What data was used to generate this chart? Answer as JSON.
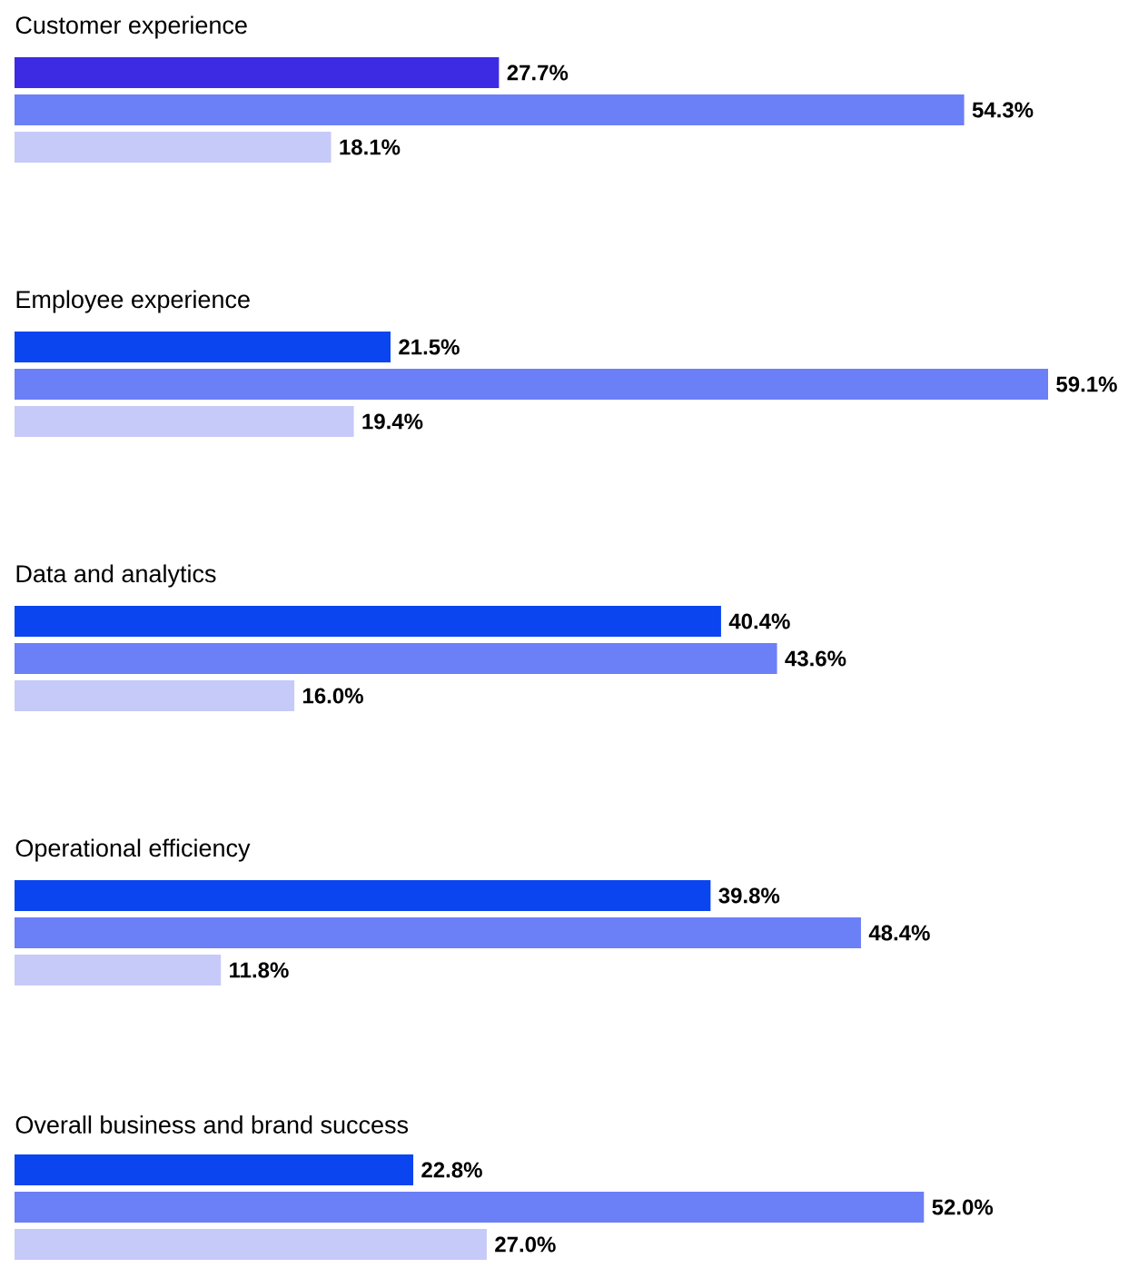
{
  "chart_data": {
    "type": "bar",
    "orientation": "horizontal",
    "categories": [
      "Customer experience",
      "Employee experience",
      "Data and analytics",
      "Operational efficiency",
      "Overall business and brand success"
    ],
    "series": [
      {
        "colors": [
          "#3d2be3",
          "#0a45f0",
          "#0a45f0",
          "#0a45f0",
          "#0a45f0"
        ],
        "values": [
          27.7,
          21.5,
          40.4,
          39.8,
          22.8
        ],
        "value_labels": [
          "27.7%",
          "21.5%",
          "40.4%",
          "39.8%",
          "22.8%"
        ]
      },
      {
        "color": "#6b7ff7",
        "values": [
          54.3,
          59.1,
          43.6,
          48.4,
          52.0
        ],
        "value_labels": [
          "54.3%",
          "59.1%",
          "43.6%",
          "48.4%",
          "52.0%"
        ]
      },
      {
        "color": "#c5caf8",
        "values": [
          18.1,
          19.4,
          16.0,
          11.8,
          27.0
        ],
        "value_labels": [
          "18.1%",
          "19.4%",
          "16.0%",
          "11.8%",
          "27.0%"
        ]
      }
    ]
  }
}
